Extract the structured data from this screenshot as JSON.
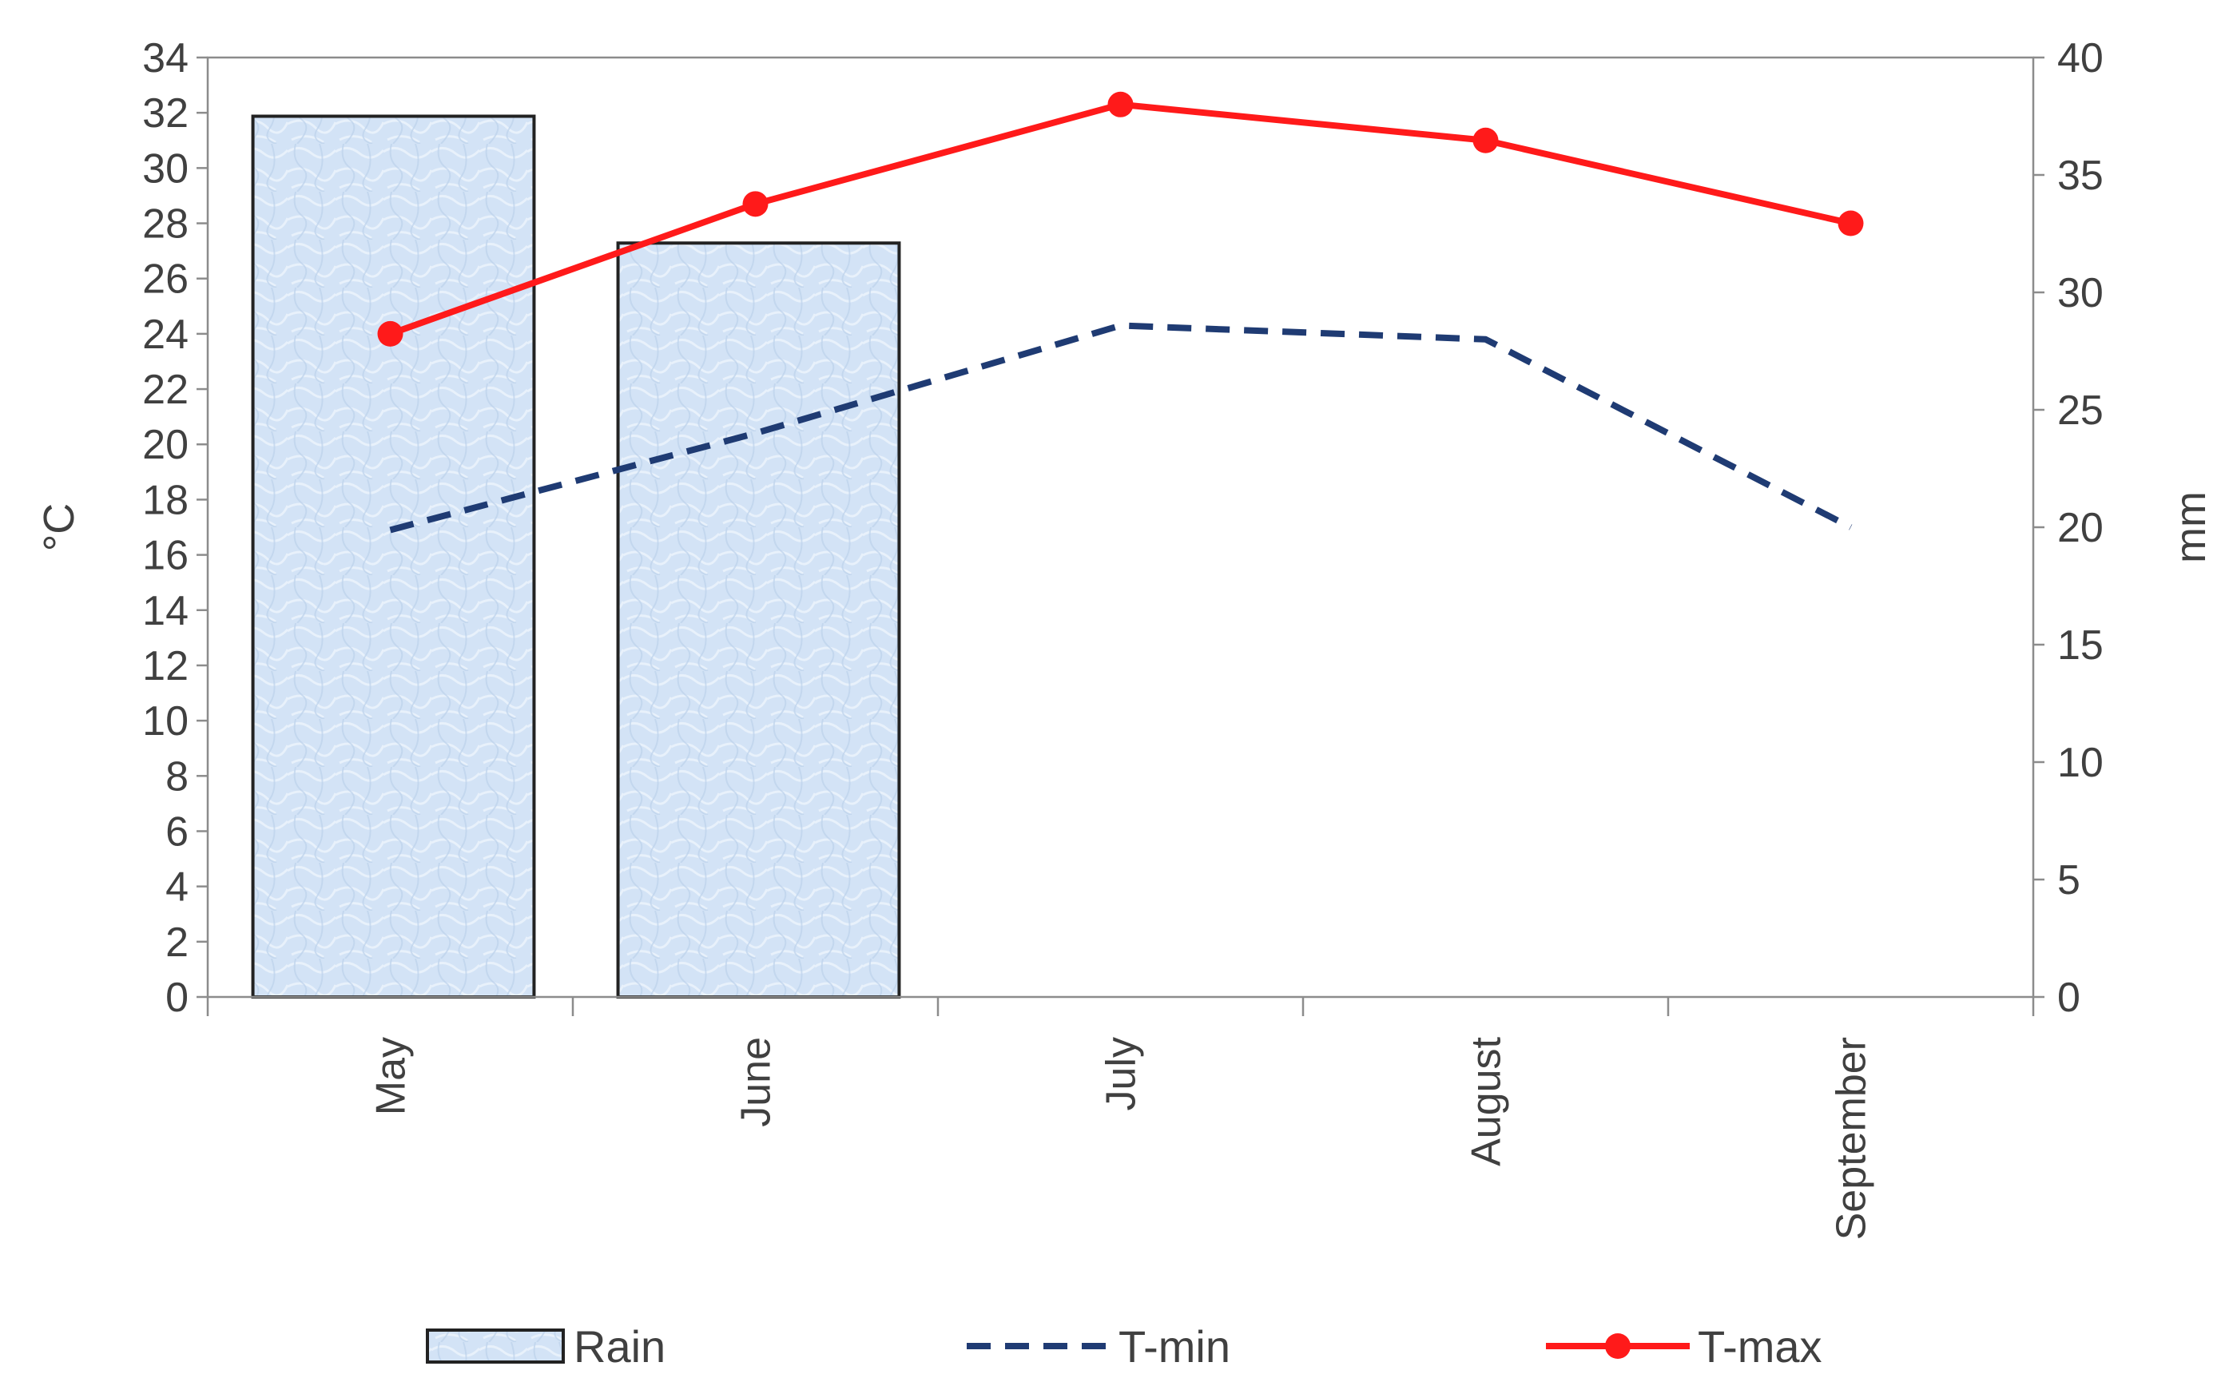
{
  "chart_data": {
    "type": "bar",
    "categories": [
      "May",
      "June",
      "July",
      "August",
      "September"
    ],
    "left_axis": {
      "label": "°C",
      "ylim": [
        0,
        34
      ],
      "step": 2
    },
    "right_axis": {
      "label": "mm",
      "ylim": [
        0,
        40
      ],
      "step": 5
    },
    "series": [
      {
        "name": "Rain",
        "type": "bar",
        "axis": "right",
        "values": [
          37.5,
          32.1,
          null,
          null,
          null
        ],
        "color": "#cfe0f5",
        "stroke": "#222222"
      },
      {
        "name": "T-min",
        "type": "line",
        "axis": "left",
        "style": "dashed",
        "values": [
          16.9,
          20.4,
          24.3,
          23.8,
          17.0
        ],
        "color": "#1f3b73"
      },
      {
        "name": "T-max",
        "type": "line",
        "axis": "left",
        "style": "solid-markers",
        "values": [
          24.0,
          28.7,
          32.3,
          31.0,
          28.0
        ],
        "color": "#ff1a1a"
      }
    ],
    "legend": {
      "position": "bottom",
      "items": [
        "Rain",
        "T-min",
        "T-max"
      ]
    },
    "grid": false
  }
}
